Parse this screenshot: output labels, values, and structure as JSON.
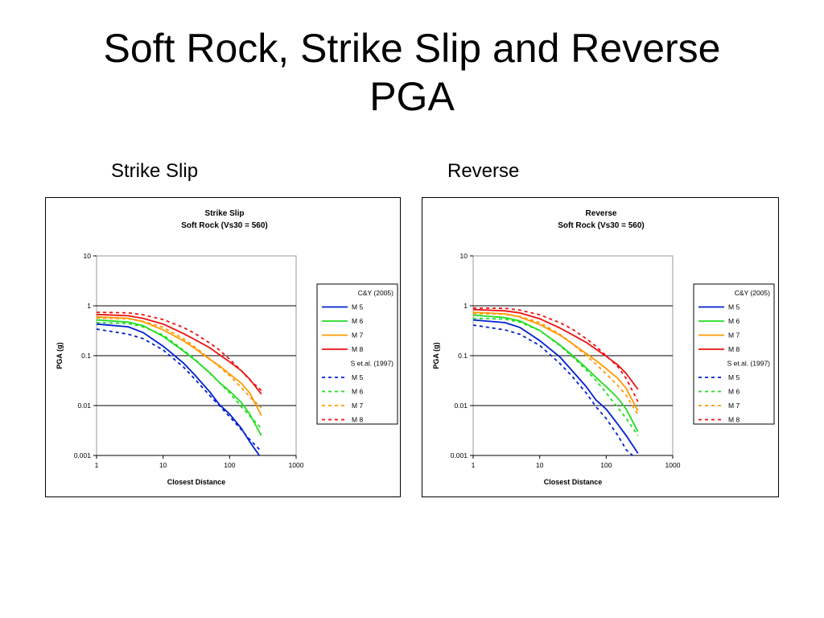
{
  "slide": {
    "title_line1": "Soft Rock, Strike Slip and Reverse",
    "title_line2": "PGA",
    "label_left": "Strike Slip",
    "label_right": "Reverse"
  },
  "chart_data": [
    {
      "type": "line",
      "title": "Strike Slip",
      "subtitle": "Soft Rock (Vs30 = 560)",
      "xlabel": "Closest Distance",
      "ylabel": "PGA (g)",
      "xscale": "log",
      "yscale": "log",
      "xlim": [
        1,
        1000
      ],
      "ylim": [
        0.001,
        10
      ],
      "xticks": [
        "1",
        "10",
        "100",
        "1000"
      ],
      "yticks": [
        "0.001",
        "0.01",
        "0.1",
        "1",
        "10"
      ],
      "grid": "horizontal major lines",
      "legend_position": "right",
      "legend_groups": [
        "C&Y (2005)",
        "S et.al. (1997)"
      ],
      "colors": {
        "M 5": "#0020d0",
        "M 6": "#22dd22",
        "M 7": "#ff9900",
        "M 8": "#ee1111"
      },
      "series": [
        {
          "name": "M 5",
          "group": "C&Y (2005)",
          "style": "solid",
          "points": [
            [
              1,
              0.43
            ],
            [
              3,
              0.38
            ],
            [
              5,
              0.29
            ],
            [
              10,
              0.155
            ],
            [
              20,
              0.072
            ],
            [
              30,
              0.041
            ],
            [
              50,
              0.019
            ],
            [
              70,
              0.0105
            ],
            [
              100,
              0.0068
            ],
            [
              150,
              0.0035
            ],
            [
              200,
              0.0019
            ],
            [
              280,
              0.001
            ]
          ]
        },
        {
          "name": "M 6",
          "group": "C&Y (2005)",
          "style": "solid",
          "points": [
            [
              1,
              0.52
            ],
            [
              3,
              0.47
            ],
            [
              5,
              0.4
            ],
            [
              10,
              0.245
            ],
            [
              20,
              0.125
            ],
            [
              30,
              0.082
            ],
            [
              50,
              0.046
            ],
            [
              70,
              0.029
            ],
            [
              100,
              0.0195
            ],
            [
              150,
              0.0115
            ],
            [
              200,
              0.0068
            ],
            [
              300,
              0.0025
            ]
          ]
        },
        {
          "name": "M 7",
          "group": "C&Y (2005)",
          "style": "solid",
          "points": [
            [
              1,
              0.6
            ],
            [
              3,
              0.56
            ],
            [
              5,
              0.48
            ],
            [
              10,
              0.33
            ],
            [
              20,
              0.2
            ],
            [
              30,
              0.14
            ],
            [
              50,
              0.085
            ],
            [
              70,
              0.063
            ],
            [
              100,
              0.043
            ],
            [
              150,
              0.028
            ],
            [
              200,
              0.018
            ],
            [
              300,
              0.0063
            ]
          ]
        },
        {
          "name": "M 8",
          "group": "C&Y (2005)",
          "style": "solid",
          "points": [
            [
              1,
              0.67
            ],
            [
              3,
              0.63
            ],
            [
              5,
              0.56
            ],
            [
              10,
              0.43
            ],
            [
              20,
              0.28
            ],
            [
              30,
              0.21
            ],
            [
              50,
              0.145
            ],
            [
              70,
              0.105
            ],
            [
              100,
              0.075
            ],
            [
              150,
              0.05
            ],
            [
              200,
              0.034
            ],
            [
              300,
              0.017
            ]
          ]
        },
        {
          "name": "M 5",
          "group": "S et.al. (1997)",
          "style": "dashed",
          "points": [
            [
              1,
              0.34
            ],
            [
              3,
              0.27
            ],
            [
              5,
              0.22
            ],
            [
              10,
              0.13
            ],
            [
              20,
              0.06
            ],
            [
              30,
              0.034
            ],
            [
              50,
              0.016
            ],
            [
              70,
              0.01
            ],
            [
              100,
              0.006
            ],
            [
              150,
              0.0033
            ],
            [
              200,
              0.0021
            ],
            [
              300,
              0.0012
            ]
          ]
        },
        {
          "name": "M 6",
          "group": "S et.al. (1997)",
          "style": "dashed",
          "points": [
            [
              1,
              0.46
            ],
            [
              3,
              0.44
            ],
            [
              5,
              0.38
            ],
            [
              10,
              0.26
            ],
            [
              20,
              0.13
            ],
            [
              30,
              0.085
            ],
            [
              50,
              0.045
            ],
            [
              70,
              0.029
            ],
            [
              100,
              0.018
            ],
            [
              150,
              0.0095
            ],
            [
              200,
              0.0062
            ],
            [
              300,
              0.0035
            ]
          ]
        },
        {
          "name": "M 7",
          "group": "S et.al. (1997)",
          "style": "dashed",
          "points": [
            [
              1,
              0.57
            ],
            [
              3,
              0.55
            ],
            [
              5,
              0.49
            ],
            [
              10,
              0.37
            ],
            [
              20,
              0.22
            ],
            [
              30,
              0.15
            ],
            [
              50,
              0.087
            ],
            [
              70,
              0.06
            ],
            [
              100,
              0.04
            ],
            [
              150,
              0.023
            ],
            [
              200,
              0.015
            ],
            [
              300,
              0.009
            ]
          ]
        },
        {
          "name": "M 8",
          "group": "S et.al. (1997)",
          "style": "dashed",
          "points": [
            [
              1,
              0.74
            ],
            [
              3,
              0.72
            ],
            [
              5,
              0.66
            ],
            [
              10,
              0.53
            ],
            [
              20,
              0.37
            ],
            [
              30,
              0.28
            ],
            [
              50,
              0.18
            ],
            [
              70,
              0.13
            ],
            [
              100,
              0.085
            ],
            [
              150,
              0.05
            ],
            [
              200,
              0.033
            ],
            [
              300,
              0.02
            ]
          ]
        }
      ]
    },
    {
      "type": "line",
      "title": "Reverse",
      "subtitle": "Soft Rock (Vs30 = 560)",
      "xlabel": "Closest Distance",
      "ylabel": "PGA (g)",
      "xscale": "log",
      "yscale": "log",
      "xlim": [
        1,
        1000
      ],
      "ylim": [
        0.001,
        10
      ],
      "xticks": [
        "1",
        "10",
        "100",
        "1000"
      ],
      "yticks": [
        "0.001",
        "0.01",
        "0.1",
        "1",
        "10"
      ],
      "grid": "horizontal major lines",
      "legend_position": "right",
      "legend_groups": [
        "C&Y (2005)",
        "S et.al. (1997)"
      ],
      "colors": {
        "M 5": "#0020d0",
        "M 6": "#22dd22",
        "M 7": "#ff9900",
        "M 8": "#ee1111"
      },
      "series": [
        {
          "name": "M 5",
          "group": "C&Y (2005)",
          "style": "solid",
          "points": [
            [
              1,
              0.52
            ],
            [
              3,
              0.46
            ],
            [
              5,
              0.37
            ],
            [
              10,
              0.2
            ],
            [
              20,
              0.095
            ],
            [
              30,
              0.052
            ],
            [
              50,
              0.024
            ],
            [
              70,
              0.013
            ],
            [
              100,
              0.0085
            ],
            [
              150,
              0.0042
            ],
            [
              200,
              0.0025
            ],
            [
              300,
              0.0011
            ]
          ]
        },
        {
          "name": "M 6",
          "group": "C&Y (2005)",
          "style": "solid",
          "points": [
            [
              1,
              0.65
            ],
            [
              3,
              0.58
            ],
            [
              5,
              0.5
            ],
            [
              10,
              0.32
            ],
            [
              20,
              0.165
            ],
            [
              30,
              0.105
            ],
            [
              50,
              0.057
            ],
            [
              70,
              0.037
            ],
            [
              100,
              0.024
            ],
            [
              150,
              0.014
            ],
            [
              200,
              0.0085
            ],
            [
              300,
              0.003
            ]
          ]
        },
        {
          "name": "M 7",
          "group": "C&Y (2005)",
          "style": "solid",
          "points": [
            [
              1,
              0.74
            ],
            [
              3,
              0.69
            ],
            [
              5,
              0.6
            ],
            [
              10,
              0.42
            ],
            [
              20,
              0.26
            ],
            [
              30,
              0.18
            ],
            [
              50,
              0.11
            ],
            [
              70,
              0.08
            ],
            [
              100,
              0.055
            ],
            [
              150,
              0.035
            ],
            [
              200,
              0.022
            ],
            [
              300,
              0.0078
            ]
          ]
        },
        {
          "name": "M 8",
          "group": "C&Y (2005)",
          "style": "solid",
          "points": [
            [
              1,
              0.84
            ],
            [
              3,
              0.79
            ],
            [
              5,
              0.72
            ],
            [
              10,
              0.55
            ],
            [
              20,
              0.36
            ],
            [
              30,
              0.27
            ],
            [
              50,
              0.185
            ],
            [
              70,
              0.135
            ],
            [
              100,
              0.097
            ],
            [
              150,
              0.065
            ],
            [
              200,
              0.044
            ],
            [
              300,
              0.021
            ]
          ]
        },
        {
          "name": "M 5",
          "group": "S et.al. (1997)",
          "style": "dashed",
          "points": [
            [
              1,
              0.41
            ],
            [
              3,
              0.33
            ],
            [
              5,
              0.27
            ],
            [
              10,
              0.16
            ],
            [
              20,
              0.07
            ],
            [
              30,
              0.04
            ],
            [
              50,
              0.018
            ],
            [
              70,
              0.0095
            ],
            [
              100,
              0.0055
            ],
            [
              150,
              0.0025
            ],
            [
              200,
              0.0013
            ],
            [
              250,
              0.001
            ]
          ]
        },
        {
          "name": "M 6",
          "group": "S et.al. (1997)",
          "style": "dashed",
          "points": [
            [
              1,
              0.56
            ],
            [
              3,
              0.54
            ],
            [
              5,
              0.47
            ],
            [
              10,
              0.32
            ],
            [
              20,
              0.16
            ],
            [
              30,
              0.1
            ],
            [
              50,
              0.052
            ],
            [
              70,
              0.032
            ],
            [
              100,
              0.018
            ],
            [
              150,
              0.009
            ],
            [
              200,
              0.0055
            ],
            [
              300,
              0.0025
            ]
          ]
        },
        {
          "name": "M 7",
          "group": "S et.al. (1997)",
          "style": "dashed",
          "points": [
            [
              1,
              0.7
            ],
            [
              3,
              0.68
            ],
            [
              5,
              0.61
            ],
            [
              10,
              0.46
            ],
            [
              20,
              0.27
            ],
            [
              30,
              0.18
            ],
            [
              50,
              0.1
            ],
            [
              70,
              0.068
            ],
            [
              100,
              0.043
            ],
            [
              150,
              0.025
            ],
            [
              200,
              0.016
            ],
            [
              300,
              0.0065
            ]
          ]
        },
        {
          "name": "M 8",
          "group": "S et.al. (1997)",
          "style": "dashed",
          "points": [
            [
              1,
              0.9
            ],
            [
              3,
              0.89
            ],
            [
              5,
              0.82
            ],
            [
              10,
              0.66
            ],
            [
              20,
              0.46
            ],
            [
              30,
              0.35
            ],
            [
              50,
              0.22
            ],
            [
              70,
              0.155
            ],
            [
              100,
              0.1
            ],
            [
              150,
              0.06
            ],
            [
              200,
              0.035
            ],
            [
              300,
              0.012
            ]
          ]
        }
      ]
    }
  ]
}
